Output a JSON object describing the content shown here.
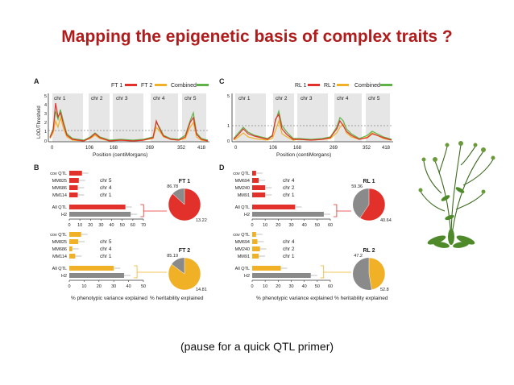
{
  "title": "Mapping the epigenetic basis of complex traits ?",
  "caption": "(pause for a quick QTL primer)",
  "colors": {
    "red": "#e2312b",
    "orange": "#f0b127",
    "green": "#5fb246",
    "gray": "#8a8a8a",
    "title": "#b01c1c"
  },
  "panelA": {
    "letter": "A",
    "legend": [
      "FT 1",
      "FT 2",
      "Combined"
    ],
    "chromosomes": [
      "chr 1",
      "chr 2",
      "chr 3",
      "chr 4",
      "chr 5"
    ],
    "y_axis_label": "LOD/Threshold",
    "y_ticks": [
      "5",
      "4",
      "3",
      "2",
      "1",
      "0"
    ],
    "x_ticks": [
      "0",
      "106",
      "168",
      "269",
      "352",
      "418"
    ],
    "x_axis_label": "Position (centiMorgans)"
  },
  "panelC": {
    "letter": "C",
    "legend": [
      "RL 1",
      "RL 2",
      "Combined"
    ],
    "chromosomes": [
      "chr 1",
      "chr 2",
      "chr 3",
      "chr 4",
      "chr 5"
    ],
    "y_ticks": [
      "5",
      "1",
      "0"
    ],
    "x_ticks": [
      "0",
      "106",
      "168",
      "269",
      "352",
      "418"
    ],
    "x_axis_label": "Position (centiMorgans)"
  },
  "panelB": {
    "letter": "B",
    "top": {
      "rows": [
        {
          "label": "cov QTL",
          "value": 12
        },
        {
          "label": "MM825",
          "value": 9,
          "chr": "chr 5"
        },
        {
          "label": "MM686",
          "value": 8,
          "chr": "chr 4"
        },
        {
          "label": "MM114",
          "value": 8,
          "chr": "chr 1"
        },
        {
          "label": "All QTL",
          "value": 53
        },
        {
          "label": "H2",
          "value": 58
        }
      ],
      "x_ticks": [
        "0",
        "10",
        "20",
        "30",
        "40",
        "50",
        "60",
        "70"
      ],
      "pie_title": "FT 1",
      "pie_values": [
        "86.78",
        "13.22"
      ]
    },
    "bottom": {
      "rows": [
        {
          "label": "cov QTL",
          "value": 8
        },
        {
          "label": "MM825",
          "value": 6,
          "chr": "chr 5"
        },
        {
          "label": "MM686",
          "value": 2,
          "chr": "chr 4"
        },
        {
          "label": "MM114",
          "value": 4,
          "chr": "chr 1"
        },
        {
          "label": "All QTL",
          "value": 30
        },
        {
          "label": "H2",
          "value": 37
        }
      ],
      "x_ticks": [
        "0",
        "10",
        "20",
        "30",
        "40",
        "50"
      ],
      "pie_title": "FT 2",
      "pie_values": [
        "85.19",
        "14.81"
      ]
    },
    "x_axis_label": "% phenotypic variance explained",
    "pie_label": "% heritability explained"
  },
  "panelD": {
    "letter": "D",
    "top": {
      "rows": [
        {
          "label": "cov QTL",
          "value": 3
        },
        {
          "label": "MM694",
          "value": 5,
          "chr": "chr 4"
        },
        {
          "label": "MM240",
          "value": 10,
          "chr": "chr 2"
        },
        {
          "label": "MM91",
          "value": 10,
          "chr": "chr 1"
        },
        {
          "label": "All QTL",
          "value": 33
        },
        {
          "label": "H2",
          "value": 55
        }
      ],
      "x_ticks": [
        "0",
        "10",
        "20",
        "30",
        "40",
        "50",
        "60"
      ],
      "pie_title": "RL 1",
      "pie_values": [
        "59.36",
        "40.64"
      ]
    },
    "bottom": {
      "rows": [
        {
          "label": "cov QTL",
          "value": 3
        },
        {
          "label": "MM694",
          "value": 4,
          "chr": "chr 4"
        },
        {
          "label": "MM240",
          "value": 6,
          "chr": "chr 2"
        },
        {
          "label": "MM91",
          "value": 5,
          "chr": "chr 1"
        },
        {
          "label": "All QTL",
          "value": 22
        },
        {
          "label": "H2",
          "value": 45
        }
      ],
      "x_ticks": [
        "0",
        "10",
        "20",
        "30",
        "40",
        "50",
        "60"
      ],
      "pie_title": "RL 2",
      "pie_values": [
        "47.2",
        "52.8"
      ]
    },
    "x_axis_label": "% phenotypic variance explained",
    "pie_label": "% heritability explained"
  }
}
